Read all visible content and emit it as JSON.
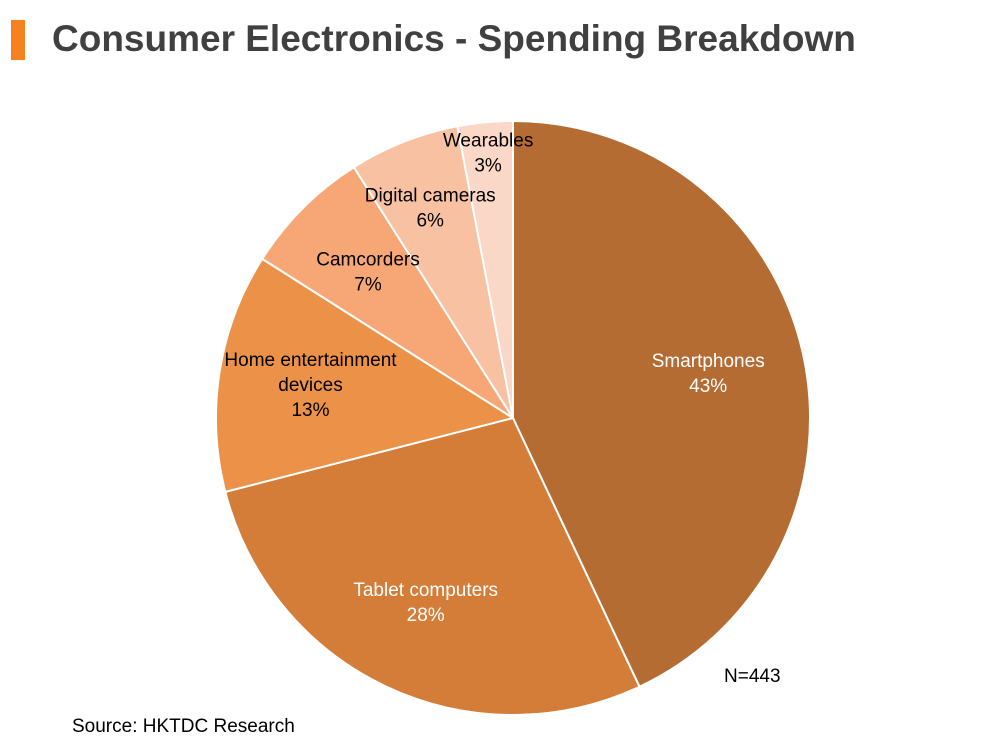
{
  "title": "Consumer Electronics - Spending Breakdown",
  "sample_size": "N=443",
  "source": "Source: HKTDC Research",
  "colors": {
    "title_bar": "#f5821f",
    "title_text": "#404040"
  },
  "chart_data": {
    "type": "pie",
    "title": "",
    "unit": "%",
    "slices": [
      {
        "label": "Smartphones",
        "label_lines": [
          "Smartphones"
        ],
        "value": 43,
        "display": "43%",
        "color": "#b46c33"
      },
      {
        "label": "Tablet computers",
        "label_lines": [
          "Tablet computers"
        ],
        "value": 28,
        "display": "28%",
        "color": "#d47d39"
      },
      {
        "label": "Home entertainment devices",
        "label_lines": [
          "Home entertainment",
          "devices"
        ],
        "value": 13,
        "display": "13%",
        "color": "#ec9148"
      },
      {
        "label": "Camcorders",
        "label_lines": [
          "Camcorders"
        ],
        "value": 7,
        "display": "7%",
        "color": "#f6a775"
      },
      {
        "label": "Digital cameras",
        "label_lines": [
          "Digital cameras"
        ],
        "value": 6,
        "display": "6%",
        "color": "#f8c1a2"
      },
      {
        "label": "Wearables",
        "label_lines": [
          "Wearables"
        ],
        "value": 3,
        "display": "3%",
        "color": "#fad7c6"
      }
    ]
  }
}
